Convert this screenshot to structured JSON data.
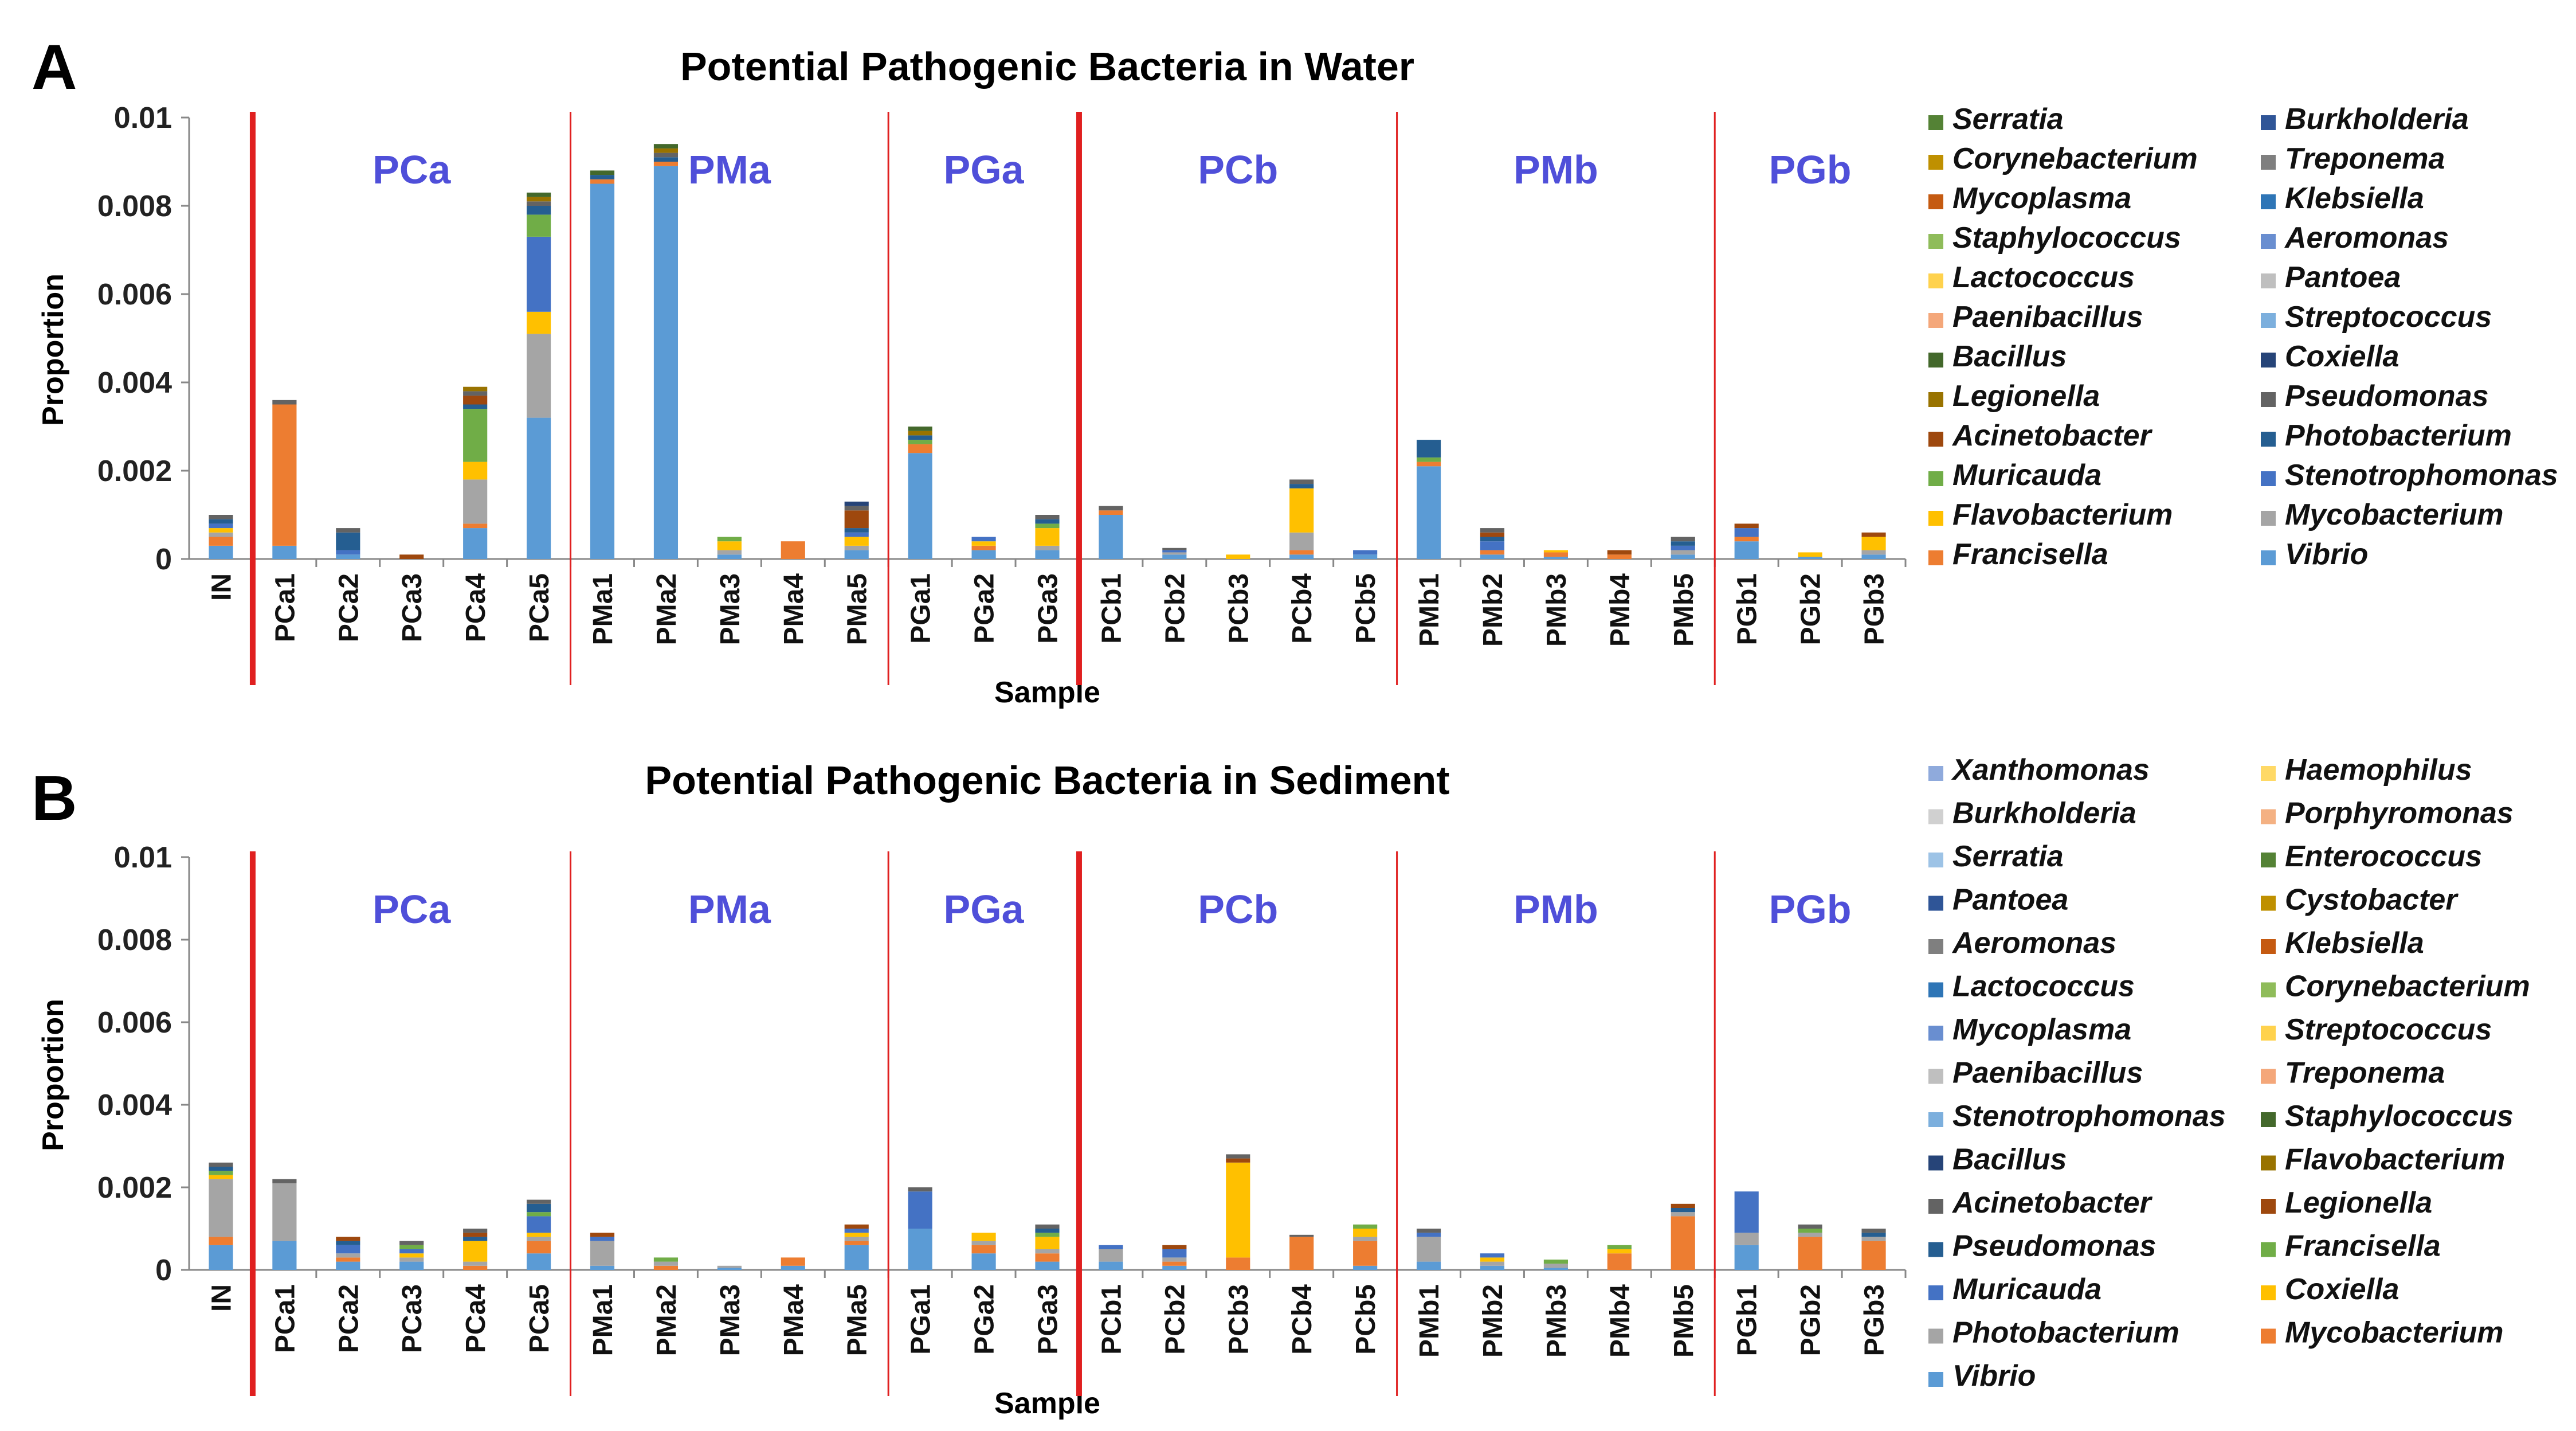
{
  "figure": {
    "panel_a_letter": "A",
    "panel_b_letter": "B"
  },
  "colors": {
    "group_label": "#4f4fd9",
    "divider": "#e02020"
  },
  "chart_data": [
    {
      "type": "bar",
      "stacked": true,
      "title": "Potential Pathogenic Bacteria in Water",
      "xlabel": "Sample",
      "ylabel": "Proportion",
      "ylim": [
        0,
        0.01
      ],
      "yticks": [
        "0",
        "0.002",
        "0.004",
        "0.006",
        "0.008",
        "0.01"
      ],
      "ytick_values": [
        0,
        0.002,
        0.004,
        0.006,
        0.008,
        0.01
      ],
      "categories": [
        "IN",
        "PCa1",
        "PCa2",
        "PCa3",
        "PCa4",
        "PCa5",
        "PMa1",
        "PMa2",
        "PMa3",
        "PMa4",
        "PMa5",
        "PGa1",
        "PGa2",
        "PGa3",
        "PCb1",
        "PCb2",
        "PCb3",
        "PCb4",
        "PCb5",
        "PMb1",
        "PMb2",
        "PMb3",
        "PMb4",
        "PMb5",
        "PGb1",
        "PGb2",
        "PGb3"
      ],
      "groups": [
        {
          "label": "PCa",
          "start": 1,
          "end": 5,
          "thick_left": true
        },
        {
          "label": "PMa",
          "start": 6,
          "end": 10,
          "thick_left": false
        },
        {
          "label": "PGa",
          "start": 11,
          "end": 13,
          "thick_left": false
        },
        {
          "label": "PCb",
          "start": 14,
          "end": 18,
          "thick_left": true
        },
        {
          "label": "PMb",
          "start": 19,
          "end": 23,
          "thick_left": false
        },
        {
          "label": "PGb",
          "start": 24,
          "end": 26,
          "thick_left": false
        }
      ],
      "series": [
        {
          "name": "Vibrio",
          "color": "#5b9bd5",
          "values": [
            0.0003,
            0.0003,
            0.0001,
            0,
            0.0007,
            0.0032,
            0.0085,
            0.0089,
            0.0001,
            0,
            0.0002,
            0.0024,
            0.0002,
            0.0002,
            0.001,
            0.0001,
            0,
            0.0001,
            0.0001,
            0.0021,
            0.0001,
            5e-05,
            0,
            0.0001,
            0.0004,
            5e-05,
            0.0001
          ]
        },
        {
          "name": "Francisella",
          "color": "#ed7d31",
          "values": [
            0.0002,
            0.0032,
            0,
            0,
            0.0001,
            0,
            0.0001,
            0.0001,
            0,
            0.0004,
            0,
            0.0002,
            0.0001,
            0,
            0.0001,
            0,
            0,
            0.0001,
            0,
            0.0001,
            0.0001,
            0.0001,
            0.0001,
            0,
            0.0001,
            0,
            0
          ]
        },
        {
          "name": "Mycobacterium",
          "color": "#a5a5a5",
          "values": [
            0.0001,
            0,
            0,
            0,
            0.001,
            0.0019,
            0,
            0,
            0.0001,
            0,
            0.0001,
            0,
            0,
            0.0001,
            0,
            5e-05,
            0,
            0.0004,
            0,
            0,
            0,
            0,
            0,
            0.0001,
            0,
            0,
            0.0001
          ]
        },
        {
          "name": "Flavobacterium",
          "color": "#ffc000",
          "values": [
            0.0001,
            0,
            0,
            0,
            0.0004,
            0.0005,
            0,
            0,
            0.0002,
            0,
            0.0002,
            0,
            0.0001,
            0.0004,
            0,
            0,
            0.0001,
            0.001,
            0,
            0,
            0,
            5e-05,
            0,
            0,
            0,
            0.0001,
            0.0003
          ]
        },
        {
          "name": "Stenotrophomonas",
          "color": "#4472c4",
          "values": [
            0.0001,
            0,
            0.0001,
            0,
            0,
            0.0017,
            0,
            0,
            0,
            0,
            0.0001,
            0,
            0.0001,
            0,
            0,
            5e-05,
            0,
            0,
            0.0001,
            0,
            0.0002,
            0,
            0,
            0.0001,
            0.0002,
            0,
            0
          ]
        },
        {
          "name": "Muricauda",
          "color": "#70ad47",
          "values": [
            0,
            0,
            0,
            0,
            0.0012,
            0.0005,
            0,
            0,
            0.0001,
            0,
            0,
            0.0001,
            0,
            0.0001,
            0,
            0,
            0,
            0,
            0,
            0.0001,
            0,
            0,
            0,
            0,
            0,
            0,
            0
          ]
        },
        {
          "name": "Photobacterium",
          "color": "#255e91",
          "values": [
            0.0001,
            0,
            0.0004,
            0,
            0.0001,
            0.0002,
            0.0001,
            0.0001,
            0,
            0,
            0.0001,
            0.0001,
            0,
            0.0001,
            0,
            0,
            0,
            0.0001,
            0,
            0.0004,
            0.0001,
            0,
            0,
            0.0001,
            0,
            0,
            0
          ]
        },
        {
          "name": "Acinetobacter",
          "color": "#9e480e",
          "values": [
            0,
            0,
            0,
            0.0001,
            0.0002,
            0,
            0,
            0,
            0,
            0,
            0.0004,
            0,
            0,
            0,
            0,
            0,
            0,
            0,
            0,
            0,
            0.0001,
            0,
            0.0001,
            0,
            0.0001,
            0,
            0.0001
          ]
        },
        {
          "name": "Pseudomonas",
          "color": "#636363",
          "values": [
            0.0001,
            0.0001,
            0.0001,
            0,
            0.0001,
            0.0001,
            0,
            0.0001,
            0,
            0,
            0.0001,
            0,
            0,
            0.0001,
            0.0001,
            5e-05,
            0,
            0.0001,
            0,
            0,
            0.0001,
            0,
            0,
            0.0001,
            0,
            0,
            0
          ]
        },
        {
          "name": "Legionella",
          "color": "#997300",
          "values": [
            0,
            0,
            0,
            0,
            0.0001,
            0.0001,
            0,
            0.0001,
            0,
            0,
            0,
            0.0001,
            0,
            0,
            0,
            0,
            0,
            0,
            0,
            0,
            0,
            0,
            0,
            0,
            0,
            0,
            0
          ]
        },
        {
          "name": "Coxiella",
          "color": "#264478",
          "values": [
            0,
            0,
            0,
            0,
            0,
            0,
            0,
            0,
            0,
            0,
            0.0001,
            0,
            0,
            0,
            0,
            0,
            0,
            0,
            0,
            0,
            0,
            0,
            0,
            0,
            0,
            0,
            0
          ]
        },
        {
          "name": "Bacillus",
          "color": "#43682b",
          "values": [
            0,
            0,
            0,
            0,
            0,
            0.0001,
            0.0001,
            0.0001,
            0,
            0,
            0,
            0.0001,
            0,
            0,
            0,
            0,
            0,
            0,
            0,
            0,
            0,
            0,
            0,
            0,
            0,
            0,
            0
          ]
        }
      ],
      "legend": {
        "left": [
          "Serratia",
          "Corynebacterium",
          "Mycoplasma",
          "Staphylococcus",
          "Lactococcus",
          "Paenibacillus",
          "Bacillus",
          "Legionella",
          "Acinetobacter",
          "Muricauda",
          "Flavobacterium",
          "Francisella"
        ],
        "left_colors": [
          "#548235",
          "#bf9000",
          "#c55a11",
          "#8fbc5a",
          "#ffd24d",
          "#f4a77a",
          "#43682b",
          "#997300",
          "#9e480e",
          "#70ad47",
          "#ffc000",
          "#ed7d31"
        ],
        "right": [
          "Burkholderia",
          "Treponema",
          "Klebsiella",
          "Aeromonas",
          "Pantoea",
          "Streptococcus",
          "Coxiella",
          "Pseudomonas",
          "Photobacterium",
          "Stenotrophomonas",
          "Mycobacterium",
          "Vibrio"
        ],
        "right_colors": [
          "#2f5597",
          "#7f7f7f",
          "#2e75b6",
          "#698ed0",
          "#bfbfbf",
          "#7cafdd",
          "#264478",
          "#636363",
          "#255e91",
          "#4472c4",
          "#a5a5a5",
          "#5b9bd5"
        ]
      }
    },
    {
      "type": "bar",
      "stacked": true,
      "title": "Potential Pathogenic Bacteria in Sediment",
      "xlabel": "Sample",
      "ylabel": "Proportion",
      "ylim": [
        0,
        0.01
      ],
      "yticks": [
        "0",
        "0.002",
        "0.004",
        "0.006",
        "0.008",
        "0.01"
      ],
      "ytick_values": [
        0,
        0.002,
        0.004,
        0.006,
        0.008,
        0.01
      ],
      "categories": [
        "IN",
        "PCa1",
        "PCa2",
        "PCa3",
        "PCa4",
        "PCa5",
        "PMa1",
        "PMa2",
        "PMa3",
        "PMa4",
        "PMa5",
        "PGa1",
        "PGa2",
        "PGa3",
        "PCb1",
        "PCb2",
        "PCb3",
        "PCb4",
        "PCb5",
        "PMb1",
        "PMb2",
        "PMb3",
        "PMb4",
        "PMb5",
        "PGb1",
        "PGb2",
        "PGb3"
      ],
      "groups": [
        {
          "label": "PCa",
          "start": 1,
          "end": 5,
          "thick_left": true
        },
        {
          "label": "PMa",
          "start": 6,
          "end": 10,
          "thick_left": false
        },
        {
          "label": "PGa",
          "start": 11,
          "end": 13,
          "thick_left": false
        },
        {
          "label": "PCb",
          "start": 14,
          "end": 18,
          "thick_left": true
        },
        {
          "label": "PMb",
          "start": 19,
          "end": 23,
          "thick_left": false
        },
        {
          "label": "PGb",
          "start": 24,
          "end": 26,
          "thick_left": false
        }
      ],
      "series": [
        {
          "name": "Vibrio",
          "color": "#5b9bd5",
          "values": [
            0.0006,
            0.0007,
            0.0002,
            0.0002,
            0,
            0.0004,
            0.0001,
            0,
            5e-05,
            0.0001,
            0.0006,
            0.001,
            0.0004,
            0.0002,
            0.0002,
            0.0001,
            0,
            0,
            0.0001,
            0.0002,
            0.0001,
            5e-05,
            0,
            0,
            0.0006,
            0,
            0
          ]
        },
        {
          "name": "Mycobacterium",
          "color": "#ed7d31",
          "values": [
            0.0002,
            0,
            0.0001,
            0,
            0.0001,
            0.0003,
            0,
            0.0001,
            0,
            0.0002,
            0.0001,
            0,
            0.0002,
            0.0002,
            0,
            0.0001,
            0.0003,
            0.0008,
            0.0006,
            0,
            0,
            0,
            0.0004,
            0.0013,
            0,
            0.0008,
            0.0007
          ]
        },
        {
          "name": "Photobacterium",
          "color": "#a5a5a5",
          "values": [
            0.0014,
            0.0014,
            0.0001,
            0.0001,
            0.0001,
            0.0001,
            0.0006,
            0.0001,
            5e-05,
            0,
            0.0001,
            0,
            0.0001,
            0.0001,
            0.0003,
            0.0001,
            0,
            0,
            0.0001,
            0.0006,
            0.0001,
            0.0001,
            0,
            0.0001,
            0.0003,
            0.0001,
            0.0001
          ]
        },
        {
          "name": "Coxiella",
          "color": "#ffc000",
          "values": [
            0.0001,
            0,
            0,
            0.0001,
            0.0005,
            0.0001,
            0,
            0,
            0,
            0,
            0.0001,
            0,
            0.0002,
            0.0003,
            0,
            0,
            0.0023,
            0,
            0.0002,
            0,
            0.0001,
            0,
            0.0001,
            0,
            0,
            0,
            0
          ]
        },
        {
          "name": "Muricauda",
          "color": "#4472c4",
          "values": [
            0,
            0,
            0.0002,
            0.0001,
            0,
            0.0004,
            0.0001,
            0,
            0,
            0,
            0.0001,
            0.0009,
            0,
            0,
            0.0001,
            0.0002,
            0,
            0,
            0,
            0.0001,
            0.0001,
            0,
            0,
            0,
            0.001,
            0,
            0
          ]
        },
        {
          "name": "Francisella",
          "color": "#70ad47",
          "values": [
            0.0001,
            0,
            0,
            0.0001,
            0,
            0.0001,
            0,
            0.0001,
            0,
            0,
            0,
            0,
            0,
            0.0001,
            0,
            0,
            0,
            0,
            0.0001,
            0,
            0,
            0.0001,
            0.0001,
            0,
            0,
            0.0001,
            0
          ]
        },
        {
          "name": "Pseudomonas",
          "color": "#255e91",
          "values": [
            0.0001,
            0,
            0.0001,
            0,
            0.0001,
            0.0002,
            0,
            0,
            0,
            0,
            0,
            0,
            0,
            0.0001,
            0,
            0,
            0,
            0,
            0,
            0,
            0,
            0,
            0,
            0.0001,
            0,
            0,
            0.0001
          ]
        },
        {
          "name": "Legionella",
          "color": "#9e480e",
          "values": [
            0,
            0,
            0.0001,
            0,
            0.0001,
            0,
            0.0001,
            0,
            0,
            0,
            0.0001,
            0,
            0,
            0,
            0,
            0.0001,
            0.0001,
            0,
            0,
            0,
            0,
            0,
            0,
            0.0001,
            0,
            0,
            0
          ]
        },
        {
          "name": "Acinetobacter",
          "color": "#636363",
          "values": [
            0.0001,
            0.0001,
            0,
            0.0001,
            0.0001,
            0.0001,
            0,
            0,
            0,
            0,
            0,
            0.0001,
            0,
            0.0001,
            0,
            0,
            0.0001,
            5e-05,
            0,
            0.0001,
            0,
            0,
            0,
            0,
            0,
            0.0001,
            0.0001
          ]
        }
      ],
      "legend": {
        "left": [
          "Xanthomonas",
          "Burkholderia",
          "Serratia",
          "Pantoea",
          "Aeromonas",
          "Lactococcus",
          "Mycoplasma",
          "Paenibacillus",
          "Stenotrophomonas",
          "Bacillus",
          "Acinetobacter",
          "Pseudomonas",
          "Muricauda",
          "Photobacterium",
          "Vibrio"
        ],
        "left_colors": [
          "#8faadc",
          "#d0d0d0",
          "#9dc3e6",
          "#2f5597",
          "#7f7f7f",
          "#2e75b6",
          "#698ed0",
          "#bfbfbf",
          "#7cafdd",
          "#264478",
          "#636363",
          "#255e91",
          "#4472c4",
          "#a5a5a5",
          "#5b9bd5"
        ],
        "right": [
          "Haemophilus",
          "Porphyromonas",
          "Enterococcus",
          "Cystobacter",
          "Klebsiella",
          "Corynebacterium",
          "Streptococcus",
          "Treponema",
          "Staphylococcus",
          "Flavobacterium",
          "Legionella",
          "Francisella",
          "Coxiella",
          "Mycobacterium"
        ],
        "right_colors": [
          "#ffd966",
          "#f4b183",
          "#548235",
          "#bf9000",
          "#c55a11",
          "#8fbc5a",
          "#ffd24d",
          "#f4a77a",
          "#43682b",
          "#997300",
          "#9e480e",
          "#70ad47",
          "#ffc000",
          "#ed7d31"
        ]
      }
    }
  ]
}
